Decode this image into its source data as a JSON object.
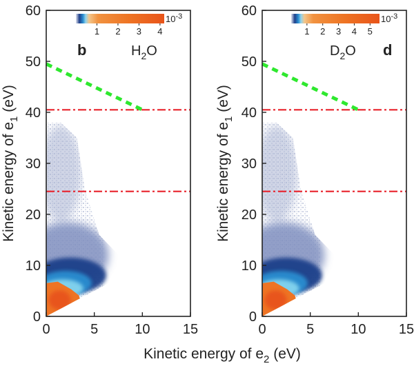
{
  "chart_data": [
    {
      "type": "heatmap",
      "panel": "b",
      "sample": "H2O",
      "sample_main": "H",
      "sample_sub": "2",
      "sample_tail": "O",
      "xlabel_main": "Kinetic energy of e",
      "xlabel_sub": "2",
      "xlabel_tail": " (eV)",
      "ylabel_main": "Kinetic energy of e",
      "ylabel_sub": "1",
      "ylabel_tail": " (eV)",
      "xlim": [
        0,
        15
      ],
      "ylim": [
        0,
        60
      ],
      "x_ticks": [
        0,
        5,
        10,
        15
      ],
      "y_ticks": [
        0,
        10,
        20,
        30,
        40,
        50,
        60
      ],
      "colorbar": {
        "ticks": [
          1,
          2,
          3,
          4
        ],
        "max": 4.2,
        "scale_label": "10",
        "scale_exp": "-3"
      },
      "reference_lines": [
        {
          "style": "red dash-dot",
          "y": 40.5,
          "color": "#e8202a"
        },
        {
          "style": "red dash-dot",
          "y": 24.5,
          "color": "#e8202a"
        },
        {
          "style": "green dashed",
          "x": [
            0,
            10
          ],
          "y": [
            49.5,
            40.5
          ],
          "color": "#2ee82e"
        }
      ],
      "density_description": "intensity concentrated at low e2 (0–4 eV) and e1 (0–8 eV), bounded by the diagonal e1 = e2; faint tail along e2 ≈ 0–4 eV up to e1 ≈ 38 eV"
    },
    {
      "type": "heatmap",
      "panel": "d",
      "sample": "D2O",
      "sample_main": "D",
      "sample_sub": "2",
      "sample_tail": "O",
      "ylabel_main": "Kinetic energy of e",
      "ylabel_sub": "1",
      "ylabel_tail": " (eV)",
      "xlim": [
        0,
        15
      ],
      "ylim": [
        0,
        60
      ],
      "x_ticks": [
        0,
        5,
        10,
        15
      ],
      "y_ticks": [
        0,
        10,
        20,
        30,
        40,
        50,
        60
      ],
      "colorbar": {
        "ticks": [
          1,
          2,
          3,
          4,
          5
        ],
        "max": 5.6,
        "scale_label": "10",
        "scale_exp": "-3"
      },
      "reference_lines": [
        {
          "style": "red dash-dot",
          "y": 40.5,
          "color": "#e8202a"
        },
        {
          "style": "red dash-dot",
          "y": 24.5,
          "color": "#e8202a"
        },
        {
          "style": "green dashed",
          "x": [
            0,
            10
          ],
          "y": [
            49.5,
            40.5
          ],
          "color": "#2ee82e"
        }
      ],
      "density_description": "same distribution shape as H2O panel: peak at low energies, triangular boundary along e1 = e2, faint tail up to e1 ≈ 38 eV"
    }
  ],
  "colors": {
    "colormap": [
      "#ffffff",
      "#c9cfe0",
      "#8d9bc4",
      "#1f3f8a",
      "#1f7ac4",
      "#5cc6e6",
      "#f1b25c",
      "#f07a20",
      "#ea5a1a"
    ],
    "axis": "#222222"
  }
}
